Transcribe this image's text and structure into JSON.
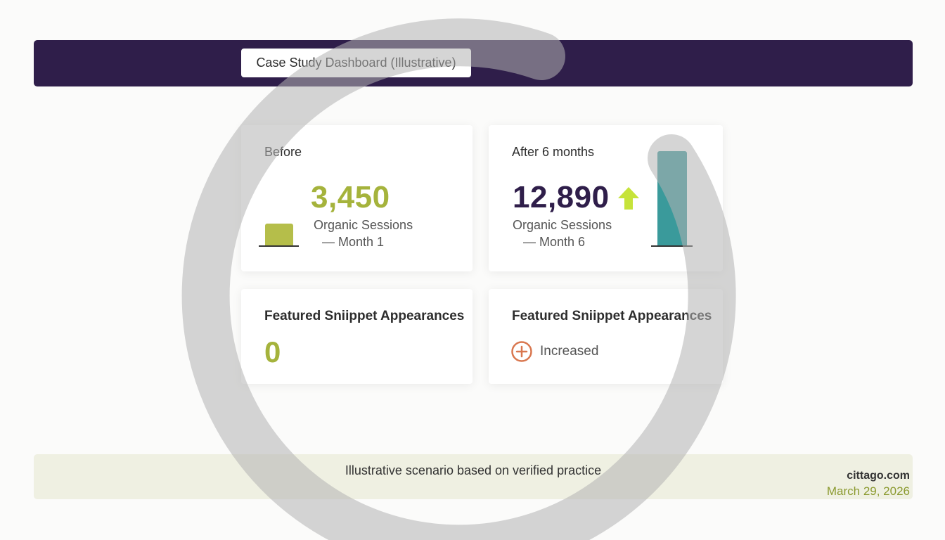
{
  "header": {
    "title": "Case Study Dashboard (Illustrative)"
  },
  "before_card": {
    "label": "Before",
    "value": "3,450",
    "metric": "Organic Sessions",
    "period": "— Month 1"
  },
  "after_card": {
    "label": "After 6 months",
    "value": "12,890",
    "metric": "Organic Sessions",
    "period": "— Month 6",
    "trend_icon": "arrow-up-icon"
  },
  "snippet_before": {
    "heading": "Featured Sniippet Appearances",
    "value": "0"
  },
  "snippet_after": {
    "heading": "Featured Sniippet Appearances",
    "status": "Increased",
    "status_icon": "plus-circle-icon"
  },
  "footer": {
    "caption": "Illustrative scenario based on verified practice",
    "domain": "cittago.com",
    "date": "March 29, 2026"
  },
  "colors": {
    "brand_dark": "#2f1e4a",
    "accent_green": "#a5b33c",
    "accent_teal": "#3a9a9b",
    "accent_lime": "#c6e33a",
    "accent_orange": "#d9774f",
    "footer_bg": "#eff0e2",
    "date_color": "#8b9a2f"
  }
}
